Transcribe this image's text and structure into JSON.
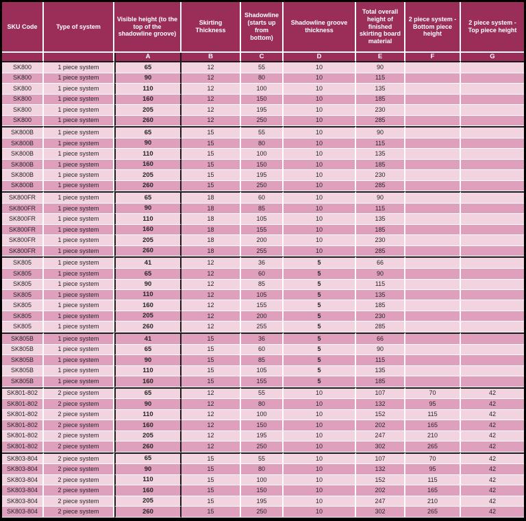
{
  "colors": {
    "header_bg": "#9B2E59",
    "row_light": "#F2D3E0",
    "row_dark": "#DEA0BD",
    "separator": "#FFFFFF",
    "group_border": "#1A1A1A"
  },
  "table": {
    "columns": [
      {
        "label": "SKU Code",
        "letter": ""
      },
      {
        "label": "Type of system",
        "letter": ""
      },
      {
        "label": "Visible height (to the top of the shadowline groove)",
        "letter": "A"
      },
      {
        "label": "Skirting Thickness",
        "letter": "B"
      },
      {
        "label": "Shadowline (starts up from bottom)",
        "letter": "C"
      },
      {
        "label": "Shadowline groove thickness",
        "letter": "D"
      },
      {
        "label": "Total overall height of finished skirting board material",
        "letter": "E"
      },
      {
        "label": "2 piece system - Bottom piece height",
        "letter": "F"
      },
      {
        "label": "2 piece system - Top piece height",
        "letter": "G"
      }
    ],
    "groups": [
      {
        "rows": [
          [
            "SK800",
            "1 piece system",
            "65",
            "12",
            "55",
            "10",
            "90",
            "",
            ""
          ],
          [
            "SK800",
            "1 piece system",
            "90",
            "12",
            "80",
            "10",
            "115",
            "",
            ""
          ],
          [
            "SK800",
            "1 piece system",
            "110",
            "12",
            "100",
            "10",
            "135",
            "",
            ""
          ],
          [
            "SK800",
            "1 piece system",
            "160",
            "12",
            "150",
            "10",
            "185",
            "",
            ""
          ],
          [
            "SK800",
            "1 piece system",
            "205",
            "12",
            "195",
            "10",
            "230",
            "",
            ""
          ],
          [
            "SK800",
            "1 piece system",
            "260",
            "12",
            "250",
            "10",
            "285",
            "",
            ""
          ]
        ]
      },
      {
        "rows": [
          [
            "SK800B",
            "1 piece system",
            "65",
            "15",
            "55",
            "10",
            "90",
            "",
            ""
          ],
          [
            "SK800B",
            "1 piece system",
            "90",
            "15",
            "80",
            "10",
            "115",
            "",
            ""
          ],
          [
            "SK800B",
            "1 piece system",
            "110",
            "15",
            "100",
            "10",
            "135",
            "",
            ""
          ],
          [
            "SK800B",
            "1 piece system",
            "160",
            "15",
            "150",
            "10",
            "185",
            "",
            ""
          ],
          [
            "SK800B",
            "1 piece system",
            "205",
            "15",
            "195",
            "10",
            "230",
            "",
            ""
          ],
          [
            "SK800B",
            "1 piece system",
            "260",
            "15",
            "250",
            "10",
            "285",
            "",
            ""
          ]
        ]
      },
      {
        "rows": [
          [
            "SK800FR",
            "1 piece system",
            "65",
            "18",
            "60",
            "10",
            "90",
            "",
            ""
          ],
          [
            "SK800FR",
            "1 piece system",
            "90",
            "18",
            "85",
            "10",
            "115",
            "",
            ""
          ],
          [
            "SK800FR",
            "1 piece system",
            "110",
            "18",
            "105",
            "10",
            "135",
            "",
            ""
          ],
          [
            "SK800FR",
            "1 piece system",
            "160",
            "18",
            "155",
            "10",
            "185",
            "",
            ""
          ],
          [
            "SK800FR",
            "1 piece system",
            "205",
            "18",
            "200",
            "10",
            "230",
            "",
            ""
          ],
          [
            "SK800FR",
            "1 piece system",
            "260",
            "18",
            "255",
            "10",
            "285",
            "",
            ""
          ]
        ]
      },
      {
        "rows": [
          [
            "SK805",
            "1 piece system",
            "41",
            "12",
            "36",
            "5",
            "66",
            "",
            ""
          ],
          [
            "SK805",
            "1 piece system",
            "65",
            "12",
            "60",
            "5",
            "90",
            "",
            ""
          ],
          [
            "SK805",
            "1 piece system",
            "90",
            "12",
            "85",
            "5",
            "115",
            "",
            ""
          ],
          [
            "SK805",
            "1 piece system",
            "110",
            "12",
            "105",
            "5",
            "135",
            "",
            ""
          ],
          [
            "SK805",
            "1 piece system",
            "160",
            "12",
            "155",
            "5",
            "185",
            "",
            ""
          ],
          [
            "SK805",
            "1 piece system",
            "205",
            "12",
            "200",
            "5",
            "230",
            "",
            ""
          ],
          [
            "SK805",
            "1 piece system",
            "260",
            "12",
            "255",
            "5",
            "285",
            "",
            ""
          ]
        ]
      },
      {
        "rows": [
          [
            "SK805B",
            "1 piece system",
            "41",
            "15",
            "36",
            "5",
            "66",
            "",
            ""
          ],
          [
            "SK805B",
            "1 piece system",
            "65",
            "15",
            "60",
            "5",
            "90",
            "",
            ""
          ],
          [
            "SK805B",
            "1 piece system",
            "90",
            "15",
            "85",
            "5",
            "115",
            "",
            ""
          ],
          [
            "SK805B",
            "1 piece system",
            "110",
            "15",
            "105",
            "5",
            "135",
            "",
            ""
          ],
          [
            "SK805B",
            "1 piece system",
            "160",
            "15",
            "155",
            "5",
            "185",
            "",
            ""
          ]
        ]
      },
      {
        "rows": [
          [
            "SK801-802",
            "2 piece system",
            "65",
            "12",
            "55",
            "10",
            "107",
            "70",
            "42"
          ],
          [
            "SK801-802",
            "2 piece system",
            "90",
            "12",
            "80",
            "10",
            "132",
            "95",
            "42"
          ],
          [
            "SK801-802",
            "2 piece system",
            "110",
            "12",
            "100",
            "10",
            "152",
            "115",
            "42"
          ],
          [
            "SK801-802",
            "2 piece system",
            "160",
            "12",
            "150",
            "10",
            "202",
            "165",
            "42"
          ],
          [
            "SK801-802",
            "2 piece system",
            "205",
            "12",
            "195",
            "10",
            "247",
            "210",
            "42"
          ],
          [
            "SK801-802",
            "2 piece system",
            "260",
            "12",
            "250",
            "10",
            "302",
            "265",
            "42"
          ]
        ]
      },
      {
        "rows": [
          [
            "SK803-804",
            "2 piece system",
            "65",
            "15",
            "55",
            "10",
            "107",
            "70",
            "42"
          ],
          [
            "SK803-804",
            "2 piece system",
            "90",
            "15",
            "80",
            "10",
            "132",
            "95",
            "42"
          ],
          [
            "SK803-804",
            "2 piece system",
            "110",
            "15",
            "100",
            "10",
            "152",
            "115",
            "42"
          ],
          [
            "SK803-804",
            "2 piece system",
            "160",
            "15",
            "150",
            "10",
            "202",
            "165",
            "42"
          ],
          [
            "SK803-804",
            "2 piece system",
            "205",
            "15",
            "195",
            "10",
            "247",
            "210",
            "42"
          ],
          [
            "SK803-804",
            "2 piece system",
            "260",
            "15",
            "250",
            "10",
            "302",
            "265",
            "42"
          ]
        ]
      }
    ]
  }
}
